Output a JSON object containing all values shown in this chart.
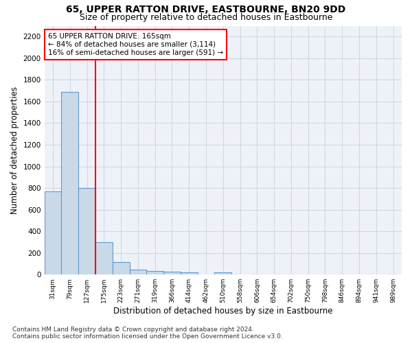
{
  "title": "65, UPPER RATTON DRIVE, EASTBOURNE, BN20 9DD",
  "subtitle": "Size of property relative to detached houses in Eastbourne",
  "xlabel": "Distribution of detached houses by size in Eastbourne",
  "ylabel": "Number of detached properties",
  "categories": [
    "31sqm",
    "79sqm",
    "127sqm",
    "175sqm",
    "223sqm",
    "271sqm",
    "319sqm",
    "366sqm",
    "414sqm",
    "462sqm",
    "510sqm",
    "558sqm",
    "606sqm",
    "654sqm",
    "702sqm",
    "750sqm",
    "798sqm",
    "846sqm",
    "894sqm",
    "941sqm",
    "989sqm"
  ],
  "values": [
    770,
    1690,
    800,
    300,
    115,
    45,
    30,
    25,
    20,
    0,
    20,
    0,
    0,
    0,
    0,
    0,
    0,
    0,
    0,
    0,
    0
  ],
  "bar_color": "#c9d9e8",
  "bar_edge_color": "#5b9bd5",
  "annotation_line1": "65 UPPER RATTON DRIVE: 165sqm",
  "annotation_line2": "← 84% of detached houses are smaller (3,114)",
  "annotation_line3": "16% of semi-detached houses are larger (591) →",
  "ylim": [
    0,
    2300
  ],
  "yticks": [
    0,
    200,
    400,
    600,
    800,
    1000,
    1200,
    1400,
    1600,
    1800,
    2000,
    2200
  ],
  "grid_color": "#d0d8e4",
  "background_color": "#eef2f8",
  "footnote": "Contains HM Land Registry data © Crown copyright and database right 2024.\nContains public sector information licensed under the Open Government Licence v3.0.",
  "title_fontsize": 10,
  "subtitle_fontsize": 9,
  "xlabel_fontsize": 8.5,
  "ylabel_fontsize": 8.5,
  "annotation_fontsize": 7.5,
  "footnote_fontsize": 6.5
}
